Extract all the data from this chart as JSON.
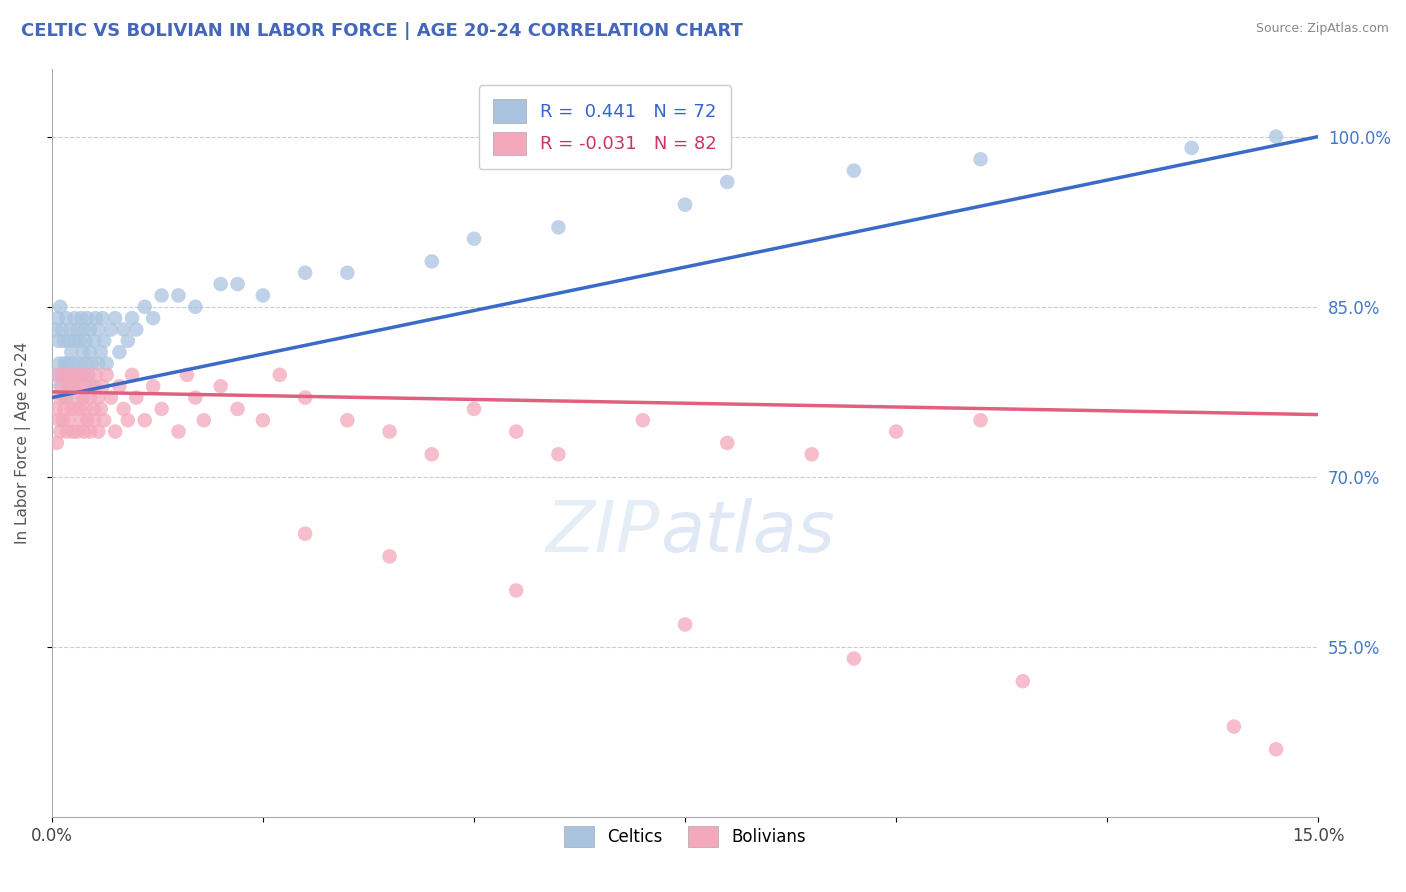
{
  "title": "CELTIC VS BOLIVIAN IN LABOR FORCE | AGE 20-24 CORRELATION CHART",
  "source": "Source: ZipAtlas.com",
  "ylabel": "In Labor Force | Age 20-24",
  "xlim": [
    0.0,
    15.0
  ],
  "ylim": [
    40.0,
    106.0
  ],
  "xtick_pos": [
    0.0,
    2.5,
    5.0,
    7.5,
    10.0,
    12.5,
    15.0
  ],
  "xtick_labels": [
    "0.0%",
    "",
    "",
    "",
    "",
    "",
    "15.0%"
  ],
  "ytick_pos": [
    55.0,
    70.0,
    85.0,
    100.0
  ],
  "ytick_labels": [
    "55.0%",
    "70.0%",
    "85.0%",
    "100.0%"
  ],
  "celtic_R": 0.441,
  "celtic_N": 72,
  "bolivian_R": -0.031,
  "bolivian_N": 82,
  "celtic_color": "#aac4e0",
  "bolivian_color": "#f4a8bc",
  "celtic_line_color": "#3a6bc8",
  "bolivian_line_color": "#e06080",
  "watermark": "ZIPatlas",
  "celtic_x": [
    0.05,
    0.05,
    0.07,
    0.08,
    0.09,
    0.1,
    0.1,
    0.12,
    0.13,
    0.14,
    0.15,
    0.15,
    0.17,
    0.18,
    0.2,
    0.2,
    0.22,
    0.23,
    0.25,
    0.25,
    0.27,
    0.28,
    0.3,
    0.3,
    0.32,
    0.33,
    0.35,
    0.35,
    0.37,
    0.38,
    0.4,
    0.4,
    0.42,
    0.43,
    0.45,
    0.45,
    0.47,
    0.5,
    0.5,
    0.52,
    0.55,
    0.55,
    0.58,
    0.6,
    0.62,
    0.65,
    0.7,
    0.75,
    0.8,
    0.85,
    0.9,
    0.95,
    1.0,
    1.1,
    1.2,
    1.3,
    1.5,
    1.7,
    2.0,
    2.2,
    2.5,
    3.0,
    3.5,
    4.5,
    5.0,
    6.0,
    7.5,
    8.0,
    9.5,
    11.0,
    13.5,
    14.5
  ],
  "celtic_y": [
    83,
    79,
    84,
    82,
    80,
    78,
    85,
    83,
    79,
    82,
    80,
    77,
    84,
    80,
    82,
    79,
    83,
    81,
    78,
    80,
    84,
    82,
    79,
    83,
    80,
    82,
    84,
    79,
    81,
    83,
    80,
    82,
    84,
    79,
    81,
    83,
    80,
    78,
    82,
    84,
    80,
    83,
    81,
    84,
    82,
    80,
    83,
    84,
    81,
    83,
    82,
    84,
    83,
    85,
    84,
    86,
    86,
    85,
    87,
    87,
    86,
    88,
    88,
    89,
    91,
    92,
    94,
    96,
    97,
    98,
    99,
    100
  ],
  "bolivian_x": [
    0.05,
    0.06,
    0.08,
    0.09,
    0.1,
    0.1,
    0.12,
    0.13,
    0.15,
    0.15,
    0.17,
    0.18,
    0.2,
    0.2,
    0.22,
    0.23,
    0.25,
    0.25,
    0.27,
    0.28,
    0.3,
    0.3,
    0.32,
    0.33,
    0.35,
    0.35,
    0.37,
    0.38,
    0.4,
    0.4,
    0.42,
    0.43,
    0.45,
    0.45,
    0.47,
    0.5,
    0.5,
    0.52,
    0.55,
    0.55,
    0.58,
    0.6,
    0.62,
    0.65,
    0.7,
    0.75,
    0.8,
    0.85,
    0.9,
    0.95,
    1.0,
    1.1,
    1.2,
    1.3,
    1.5,
    1.6,
    1.7,
    1.8,
    2.0,
    2.2,
    2.5,
    2.7,
    3.0,
    3.5,
    4.0,
    4.5,
    5.0,
    5.5,
    6.0,
    7.0,
    8.0,
    9.0,
    10.0,
    11.0,
    3.0,
    4.0,
    5.5,
    7.5,
    9.5,
    11.5,
    14.0,
    14.5
  ],
  "bolivian_y": [
    76,
    73,
    79,
    75,
    77,
    74,
    78,
    75,
    79,
    76,
    77,
    74,
    78,
    75,
    79,
    76,
    74,
    78,
    76,
    79,
    77,
    74,
    78,
    76,
    79,
    75,
    77,
    74,
    78,
    76,
    75,
    79,
    77,
    74,
    78,
    76,
    75,
    79,
    77,
    74,
    76,
    78,
    75,
    79,
    77,
    74,
    78,
    76,
    75,
    79,
    77,
    75,
    78,
    76,
    74,
    79,
    77,
    75,
    78,
    76,
    75,
    79,
    77,
    75,
    74,
    72,
    76,
    74,
    72,
    75,
    73,
    72,
    74,
    75,
    65,
    63,
    60,
    57,
    54,
    52,
    48,
    46
  ]
}
